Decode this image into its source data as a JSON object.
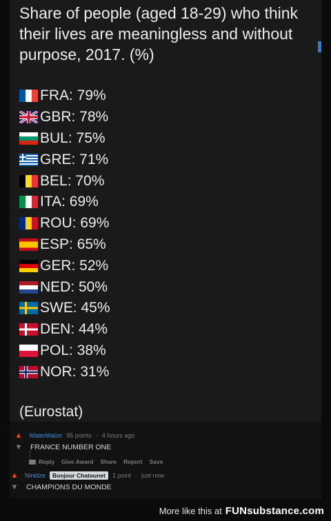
{
  "post": {
    "title": "Share of people (aged 18-29) who think their lives are meaningless and without purpose, 2017. (%)",
    "source": "(Eurostat)",
    "stats": [
      {
        "text": "FRA: 79%",
        "flag": "france-flag-icon"
      },
      {
        "text": "GBR: 78%",
        "flag": "uk-flag-icon"
      },
      {
        "text": "BUL: 75%",
        "flag": "bulgaria-flag-icon"
      },
      {
        "text": "GRE: 71%",
        "flag": "greece-flag-icon"
      },
      {
        "text": "BEL: 70%",
        "flag": "belgium-flag-icon"
      },
      {
        "text": "ITA: 69%",
        "flag": "italy-flag-icon"
      },
      {
        "text": "ROU: 69%",
        "flag": "romania-flag-icon"
      },
      {
        "text": "ESP: 65%",
        "flag": "spain-flag-icon"
      },
      {
        "text": "GER: 52%",
        "flag": "germany-flag-icon"
      },
      {
        "text": "NED: 50%",
        "flag": "netherlands-flag-icon"
      },
      {
        "text": "SWE: 45%",
        "flag": "sweden-flag-icon"
      },
      {
        "text": "DEN: 44%",
        "flag": "denmark-flag-icon"
      },
      {
        "text": "POL: 38%",
        "flag": "poland-flag-icon"
      },
      {
        "text": "NOR: 31%",
        "flag": "norway-flag-icon"
      }
    ]
  },
  "comments": [
    {
      "username": "WaterMalon",
      "points": "95 points",
      "time": "4 hours ago",
      "body": "FRANCE NUMBER ONE",
      "actions": [
        "Reply",
        "Give Award",
        "Share",
        "Report",
        "Save"
      ]
    },
    {
      "username": "Ninidze",
      "flair": "Bonjour Chatounet",
      "points": "1 point",
      "time": "just now",
      "body": "CHAMPIONS DU MONDE"
    }
  ],
  "footer": {
    "text": "More like this at",
    "brand": "FUNsubstance.com"
  },
  "colors": {
    "accent_upvote": "#ff4500",
    "username": "#3a8fd8",
    "scroll_indicator": "#2a7fd4"
  }
}
